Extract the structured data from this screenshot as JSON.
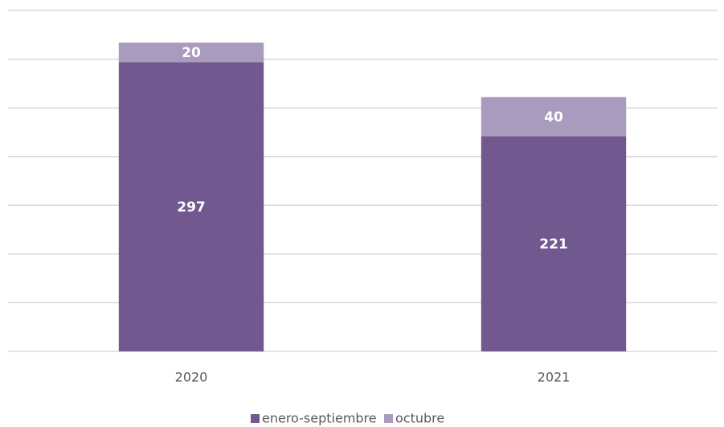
{
  "chart_data": {
    "type": "stacked_bar",
    "categories": [
      "2020",
      "2021"
    ],
    "series": [
      {
        "name": "enero-septiembre",
        "color": "#71588f",
        "values": [
          297,
          221
        ]
      },
      {
        "name": "octubre",
        "color": "#a99bbd",
        "values": [
          20,
          40
        ]
      }
    ],
    "ylim": [
      0,
      350
    ],
    "yticks": [
      0,
      50,
      100,
      150,
      200,
      250,
      300,
      350
    ],
    "grid": true,
    "legend": "bottom"
  }
}
